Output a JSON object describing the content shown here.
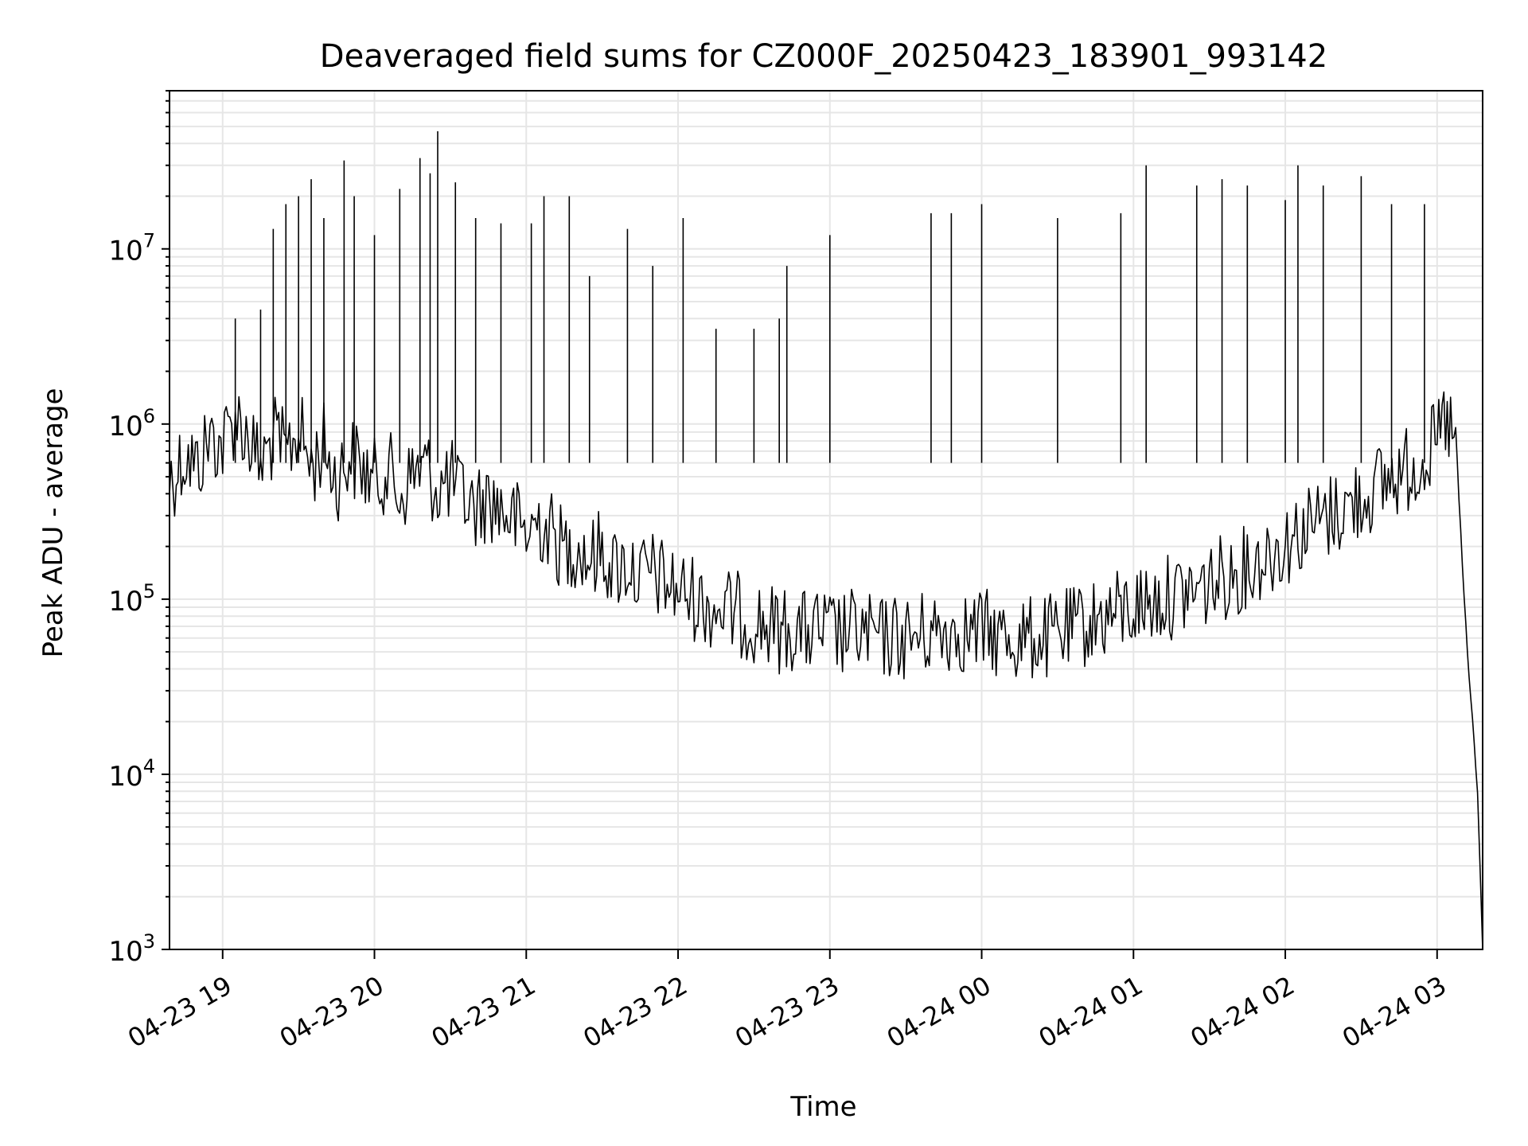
{
  "chart_data": {
    "type": "line",
    "title": "Deaveraged field sums for CZ000F_20250423_183901_993142",
    "xlabel": "Time",
    "ylabel": "Peak ADU - average",
    "y_scale": "log",
    "ylim": [
      1000,
      80000000
    ],
    "xlim": [
      "2025-04-23 18:39",
      "2025-04-24 03:18"
    ],
    "x_ticks": [
      {
        "label": "04-23 19",
        "value": "2025-04-23 19:00"
      },
      {
        "label": "04-23 20",
        "value": "2025-04-23 20:00"
      },
      {
        "label": "04-23 21",
        "value": "2025-04-23 21:00"
      },
      {
        "label": "04-23 22",
        "value": "2025-04-23 22:00"
      },
      {
        "label": "04-23 23",
        "value": "2025-04-23 23:00"
      },
      {
        "label": "04-24 00",
        "value": "2025-04-24 00:00"
      },
      {
        "label": "04-24 01",
        "value": "2025-04-24 01:00"
      },
      {
        "label": "04-24 02",
        "value": "2025-04-24 02:00"
      },
      {
        "label": "04-24 03",
        "value": "2025-04-24 03:00"
      }
    ],
    "y_ticks": [
      {
        "base": "10",
        "exp": "3",
        "value": 1000
      },
      {
        "base": "10",
        "exp": "4",
        "value": 10000
      },
      {
        "base": "10",
        "exp": "5",
        "value": 100000
      },
      {
        "base": "10",
        "exp": "6",
        "value": 1000000
      },
      {
        "base": "10",
        "exp": "7",
        "value": 10000000
      }
    ],
    "grid": true,
    "series_color": "#000000",
    "grid_color": "#e6e6e6",
    "series": [
      {
        "name": "",
        "points": [
          [
            "2025-04-23 18:39",
            500000
          ],
          [
            "2025-04-23 18:45",
            700000
          ],
          [
            "2025-04-23 18:50",
            600000
          ],
          [
            "2025-04-23 18:55",
            900000
          ],
          [
            "2025-04-23 19:00",
            800000
          ],
          [
            "2025-04-23 19:05",
            1200000
          ],
          [
            "2025-04-23 19:10",
            900000
          ],
          [
            "2025-04-23 19:15",
            600000
          ],
          [
            "2025-04-23 19:20",
            900000
          ],
          [
            "2025-04-23 19:25",
            700000
          ],
          [
            "2025-04-23 19:30",
            1000000
          ],
          [
            "2025-04-23 19:35",
            600000
          ],
          [
            "2025-04-23 19:40",
            800000
          ],
          [
            "2025-04-23 19:45",
            500000
          ],
          [
            "2025-04-23 19:50",
            700000
          ],
          [
            "2025-04-23 19:55",
            600000
          ],
          [
            "2025-04-23 20:00",
            500000
          ],
          [
            "2025-04-23 20:05",
            600000
          ],
          [
            "2025-04-23 20:10",
            400000
          ],
          [
            "2025-04-23 20:15",
            550000
          ],
          [
            "2025-04-23 20:20",
            600000
          ],
          [
            "2025-04-23 20:25",
            450000
          ],
          [
            "2025-04-23 20:30",
            500000
          ],
          [
            "2025-04-23 20:35",
            400000
          ],
          [
            "2025-04-23 20:40",
            350000
          ],
          [
            "2025-04-23 20:45",
            400000
          ],
          [
            "2025-04-23 20:50",
            350000
          ],
          [
            "2025-04-23 20:55",
            300000
          ],
          [
            "2025-04-23 21:00",
            250000
          ],
          [
            "2025-04-23 21:05",
            300000
          ],
          [
            "2025-04-23 21:10",
            250000
          ],
          [
            "2025-04-23 21:15",
            200000
          ],
          [
            "2025-04-23 21:20",
            220000
          ],
          [
            "2025-04-23 21:25",
            180000
          ],
          [
            "2025-04-23 21:30",
            200000
          ],
          [
            "2025-04-23 21:35",
            160000
          ],
          [
            "2025-04-23 21:40",
            170000
          ],
          [
            "2025-04-23 21:45",
            140000
          ],
          [
            "2025-04-23 21:50",
            150000
          ],
          [
            "2025-04-23 21:55",
            130000
          ],
          [
            "2025-04-23 22:00",
            120000
          ],
          [
            "2025-04-23 22:05",
            110000
          ],
          [
            "2025-04-23 22:10",
            100000
          ],
          [
            "2025-04-23 22:15",
            95000
          ],
          [
            "2025-04-23 22:20",
            90000
          ],
          [
            "2025-04-23 22:25",
            85000
          ],
          [
            "2025-04-23 22:30",
            80000
          ],
          [
            "2025-04-23 22:35",
            75000
          ],
          [
            "2025-04-23 22:40",
            70000
          ],
          [
            "2025-04-23 22:45",
            72000
          ],
          [
            "2025-04-23 22:50",
            68000
          ],
          [
            "2025-04-23 22:55",
            70000
          ],
          [
            "2025-04-23 23:00",
            68000
          ],
          [
            "2025-04-23 23:05",
            66000
          ],
          [
            "2025-04-23 23:10",
            70000
          ],
          [
            "2025-04-23 23:15",
            65000
          ],
          [
            "2025-04-23 23:20",
            62000
          ],
          [
            "2025-04-23 23:25",
            65000
          ],
          [
            "2025-04-23 23:30",
            63000
          ],
          [
            "2025-04-23 23:35",
            66000
          ],
          [
            "2025-04-23 23:40",
            68000
          ],
          [
            "2025-04-23 23:45",
            70000
          ],
          [
            "2025-04-23 23:50",
            72000
          ],
          [
            "2025-04-23 23:55",
            68000
          ],
          [
            "2025-04-24 00:00",
            70000
          ],
          [
            "2025-04-24 00:05",
            66000
          ],
          [
            "2025-04-24 00:10",
            65000
          ],
          [
            "2025-04-24 00:15",
            62000
          ],
          [
            "2025-04-24 00:20",
            64000
          ],
          [
            "2025-04-24 00:25",
            63000
          ],
          [
            "2025-04-24 00:30",
            66000
          ],
          [
            "2025-04-24 00:35",
            70000
          ],
          [
            "2025-04-24 00:40",
            75000
          ],
          [
            "2025-04-24 00:45",
            80000
          ],
          [
            "2025-04-24 00:50",
            85000
          ],
          [
            "2025-04-24 00:55",
            90000
          ],
          [
            "2025-04-24 01:00",
            95000
          ],
          [
            "2025-04-24 01:05",
            100000
          ],
          [
            "2025-04-24 01:10",
            105000
          ],
          [
            "2025-04-24 01:15",
            110000
          ],
          [
            "2025-04-24 01:20",
            115000
          ],
          [
            "2025-04-24 01:25",
            120000
          ],
          [
            "2025-04-24 01:30",
            130000
          ],
          [
            "2025-04-24 01:35",
            140000
          ],
          [
            "2025-04-24 01:40",
            150000
          ],
          [
            "2025-04-24 01:45",
            160000
          ],
          [
            "2025-04-24 01:50",
            180000
          ],
          [
            "2025-04-24 01:55",
            200000
          ],
          [
            "2025-04-24 02:00",
            220000
          ],
          [
            "2025-04-24 02:05",
            250000
          ],
          [
            "2025-04-24 02:10",
            280000
          ],
          [
            "2025-04-24 02:15",
            300000
          ],
          [
            "2025-04-24 02:20",
            330000
          ],
          [
            "2025-04-24 02:25",
            360000
          ],
          [
            "2025-04-24 02:30",
            400000
          ],
          [
            "2025-04-24 02:35",
            450000
          ],
          [
            "2025-04-24 02:40",
            500000
          ],
          [
            "2025-04-24 02:45",
            550000
          ],
          [
            "2025-04-24 02:50",
            600000
          ],
          [
            "2025-04-24 02:55",
            700000
          ],
          [
            "2025-04-24 03:00",
            800000
          ],
          [
            "2025-04-24 03:02",
            1000000
          ],
          [
            "2025-04-24 03:04",
            1100000
          ],
          [
            "2025-04-24 03:06",
            900000
          ],
          [
            "2025-04-24 03:08",
            600000
          ],
          [
            "2025-04-24 03:10",
            150000
          ],
          [
            "2025-04-24 03:12",
            50000
          ],
          [
            "2025-04-24 03:14",
            20000
          ],
          [
            "2025-04-24 03:16",
            8000
          ],
          [
            "2025-04-24 03:18",
            1000
          ]
        ],
        "spikes": [
          [
            "2025-04-23 19:05",
            4000000
          ],
          [
            "2025-04-23 19:15",
            4500000
          ],
          [
            "2025-04-23 19:20",
            13000000
          ],
          [
            "2025-04-23 19:25",
            18000000
          ],
          [
            "2025-04-23 19:30",
            20000000
          ],
          [
            "2025-04-23 19:35",
            25000000
          ],
          [
            "2025-04-23 19:40",
            15000000
          ],
          [
            "2025-04-23 19:48",
            32000000
          ],
          [
            "2025-04-23 19:52",
            20000000
          ],
          [
            "2025-04-23 20:00",
            12000000
          ],
          [
            "2025-04-23 20:10",
            22000000
          ],
          [
            "2025-04-23 20:18",
            33000000
          ],
          [
            "2025-04-23 20:22",
            27000000
          ],
          [
            "2025-04-23 20:25",
            47000000
          ],
          [
            "2025-04-23 20:32",
            24000000
          ],
          [
            "2025-04-23 20:40",
            15000000
          ],
          [
            "2025-04-23 20:50",
            14000000
          ],
          [
            "2025-04-23 21:02",
            14000000
          ],
          [
            "2025-04-23 21:07",
            20000000
          ],
          [
            "2025-04-23 21:17",
            20000000
          ],
          [
            "2025-04-23 21:25",
            7000000
          ],
          [
            "2025-04-23 21:40",
            13000000
          ],
          [
            "2025-04-23 21:50",
            8000000
          ],
          [
            "2025-04-23 22:02",
            15000000
          ],
          [
            "2025-04-23 22:15",
            3500000
          ],
          [
            "2025-04-23 22:30",
            3500000
          ],
          [
            "2025-04-23 22:40",
            4000000
          ],
          [
            "2025-04-23 22:43",
            8000000
          ],
          [
            "2025-04-23 23:00",
            12000000
          ],
          [
            "2025-04-23 23:40",
            16000000
          ],
          [
            "2025-04-23 23:48",
            16000000
          ],
          [
            "2025-04-24 00:00",
            18000000
          ],
          [
            "2025-04-24 00:30",
            15000000
          ],
          [
            "2025-04-24 00:55",
            16000000
          ],
          [
            "2025-04-24 01:05",
            30000000
          ],
          [
            "2025-04-24 01:25",
            23000000
          ],
          [
            "2025-04-24 01:35",
            25000000
          ],
          [
            "2025-04-24 01:45",
            23000000
          ],
          [
            "2025-04-24 02:00",
            19000000
          ],
          [
            "2025-04-24 02:05",
            30000000
          ],
          [
            "2025-04-24 02:15",
            23000000
          ],
          [
            "2025-04-24 02:30",
            26000000
          ],
          [
            "2025-04-24 02:42",
            18000000
          ],
          [
            "2025-04-24 02:55",
            18000000
          ]
        ]
      }
    ]
  }
}
